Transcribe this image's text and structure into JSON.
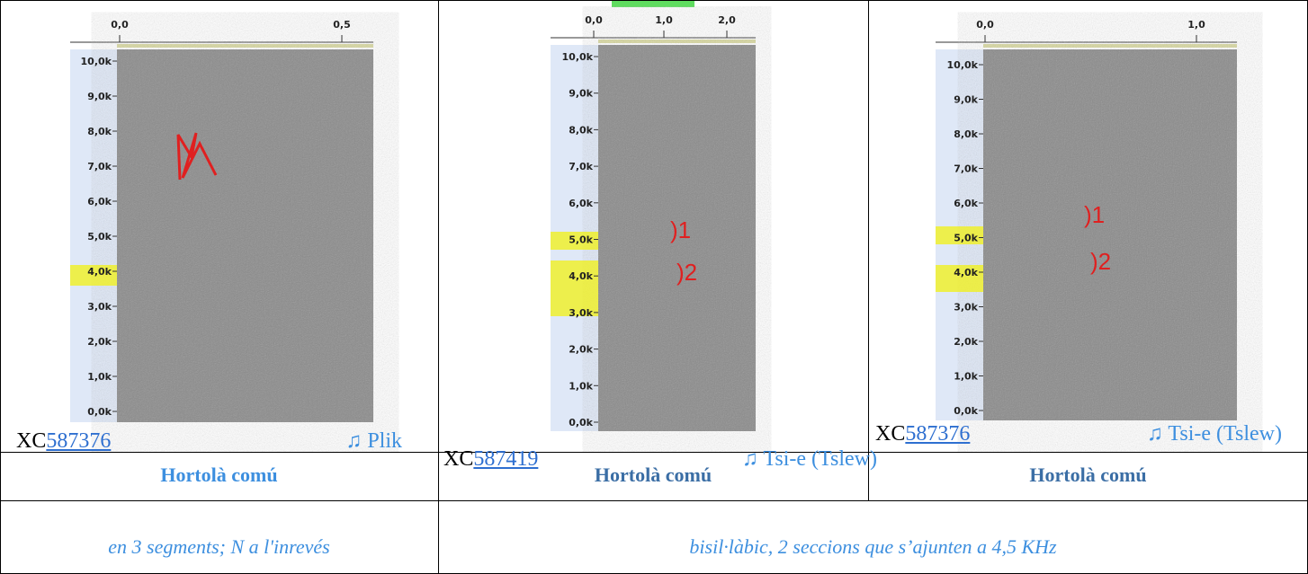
{
  "panels": [
    {
      "xticks": [
        "0,0",
        "0,5"
      ],
      "yticks": [
        "10,0k",
        "9,0k",
        "8,0k",
        "7,0k",
        "6,0k",
        "5,0k",
        "4,0k",
        "3,0k",
        "2,0k",
        "1,0k",
        "0,0k"
      ],
      "annotations": [],
      "caption": {
        "prefix": "XC",
        "id": "587376",
        "sound": "♫ Plik"
      }
    },
    {
      "xticks": [
        "0,0",
        "1,0",
        "2,0"
      ],
      "yticks": [
        "10,0k",
        "9,0k",
        "8,0k",
        "7,0k",
        "6,0k",
        "5,0k",
        "4,0k",
        "3,0k",
        "2,0k",
        "1,0k",
        "0,0k"
      ],
      "annotations": [
        ")1",
        ")2"
      ],
      "caption": {
        "prefix": "XC",
        "id": "587419",
        "sound": "♫ Tsi-e (Tslew)"
      }
    },
    {
      "xticks": [
        "0,0",
        "1,0"
      ],
      "yticks": [
        "10,0k",
        "9,0k",
        "8,0k",
        "7,0k",
        "6,0k",
        "5,0k",
        "4,0k",
        "3,0k",
        "2,0k",
        "1,0k",
        "0,0k"
      ],
      "annotations": [
        ")1",
        ")2"
      ],
      "caption": {
        "prefix": "XC",
        "id": "587376",
        "sound": "♫ Tsi-e (Tslew)"
      }
    }
  ],
  "names": [
    "Hortolà comú",
    "Hortolà comú",
    "Hortolà comú"
  ],
  "descriptions": [
    "en 3 segments; N a l'inrevés",
    "bisil·làbic, 2 seccions que s’ajunten a 4,5 KHz"
  ]
}
